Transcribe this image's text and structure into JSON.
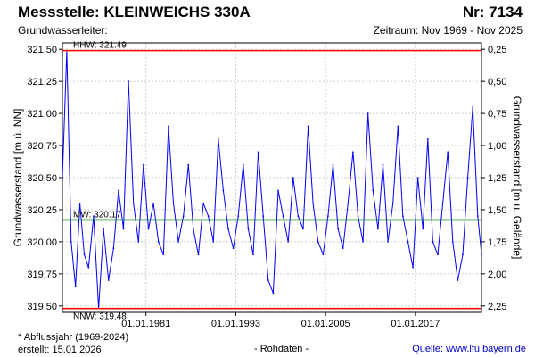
{
  "header": {
    "title": "Messstelle: KLEINWEICHS 330A",
    "number": "Nr: 7134",
    "aquifer_label": "Grundwasserleiter:",
    "period": "Zeitraum: Nov 1969 - Nov 2025"
  },
  "footer": {
    "footnote": "* Abflussjahr (1969-2024)",
    "created": "erstellt:  15.01.2026",
    "raw_data": "- Rohdaten -",
    "source": "Quelle: www.lfu.bayern.de"
  },
  "colors": {
    "series": "#0000ff",
    "extremes": "#ff0000",
    "mean": "#008000",
    "grid": "#cccccc"
  },
  "chart_data": {
    "type": "line",
    "ylabel": "Grundwasserstand [m ü. NN]",
    "ylabel_right": "Grundwasserstand [m u. Gelände]",
    "xlim": [
      "1969-11-01",
      "2025-11-01"
    ],
    "ylim": [
      319.45,
      321.55
    ],
    "ylim_right": [
      0.2,
      2.3
    ],
    "right_axis_offset": 321.75,
    "grid": true,
    "x_ticks": [
      {
        "date": "1981-01-01",
        "label": "01.01.1981"
      },
      {
        "date": "1993-01-01",
        "label": "01.01.1993"
      },
      {
        "date": "2005-01-01",
        "label": "01.01.2005"
      },
      {
        "date": "2017-01-01",
        "label": "01.01.2017"
      }
    ],
    "y_ticks": [
      {
        "value": 319.5,
        "label": "319,50"
      },
      {
        "value": 319.75,
        "label": "319,75"
      },
      {
        "value": 320.0,
        "label": "320,00"
      },
      {
        "value": 320.25,
        "label": "320,25"
      },
      {
        "value": 320.5,
        "label": "320,50"
      },
      {
        "value": 320.75,
        "label": "320,75"
      },
      {
        "value": 321.0,
        "label": "321,00"
      },
      {
        "value": 321.25,
        "label": "321,25"
      },
      {
        "value": 321.5,
        "label": "321,50"
      }
    ],
    "y_ticks_right": [
      {
        "value": 0.25,
        "label": "0,25"
      },
      {
        "value": 0.5,
        "label": "0,50"
      },
      {
        "value": 0.75,
        "label": "0,75"
      },
      {
        "value": 1.0,
        "label": "1,00"
      },
      {
        "value": 1.25,
        "label": "1,25"
      },
      {
        "value": 1.5,
        "label": "1,50"
      },
      {
        "value": 1.75,
        "label": "1,75"
      },
      {
        "value": 2.0,
        "label": "2,00"
      },
      {
        "value": 2.25,
        "label": "2,25"
      }
    ],
    "reference_lines": [
      {
        "label": "HHW: 321.49",
        "value": 321.49,
        "role": "extremes"
      },
      {
        "label": "MW: 320.17",
        "value": 320.17,
        "role": "mean"
      },
      {
        "label": "NNW: 319.48",
        "value": 319.48,
        "role": "extremes"
      }
    ],
    "series": [
      {
        "x": [
          "1969-11-01",
          "1970-06-01",
          "1971-01-01",
          "1971-08-01",
          "1972-03-01",
          "1972-10-01",
          "1973-05-01",
          "1974-01-01",
          "1974-09-01",
          "1975-05-01",
          "1976-01-01",
          "1976-09-01",
          "1977-05-01",
          "1978-01-01",
          "1978-09-01",
          "1979-05-01",
          "1980-01-01",
          "1980-09-01",
          "1981-05-01",
          "1982-01-01",
          "1982-09-01",
          "1983-05-01",
          "1984-01-01",
          "1984-09-01",
          "1985-05-01",
          "1986-01-01",
          "1986-09-01",
          "1987-05-01",
          "1988-01-01",
          "1988-09-01",
          "1989-05-01",
          "1990-01-01",
          "1990-09-01",
          "1991-05-01",
          "1992-01-01",
          "1992-09-01",
          "1993-05-01",
          "1994-01-01",
          "1994-09-01",
          "1995-05-01",
          "1996-01-01",
          "1996-09-01",
          "1997-05-01",
          "1998-01-01",
          "1998-09-01",
          "1999-05-01",
          "2000-01-01",
          "2000-09-01",
          "2001-05-01",
          "2002-01-01",
          "2002-09-01",
          "2003-05-01",
          "2004-01-01",
          "2004-09-01",
          "2005-05-01",
          "2006-01-01",
          "2006-09-01",
          "2007-05-01",
          "2008-01-01",
          "2008-09-01",
          "2009-05-01",
          "2010-01-01",
          "2010-09-01",
          "2011-05-01",
          "2012-01-01",
          "2012-09-01",
          "2013-05-01",
          "2014-01-01",
          "2014-09-01",
          "2015-05-01",
          "2016-01-01",
          "2016-09-01",
          "2017-05-01",
          "2018-01-01",
          "2018-09-01",
          "2019-05-01",
          "2020-01-01",
          "2020-09-01",
          "2021-05-01",
          "2022-01-01",
          "2022-09-01",
          "2023-05-01",
          "2024-01-01",
          "2024-09-01",
          "2025-05-01",
          "2025-11-01"
        ],
        "y": [
          320.5,
          321.49,
          320.0,
          319.65,
          320.3,
          319.9,
          319.8,
          320.2,
          319.48,
          320.1,
          319.7,
          319.95,
          320.4,
          320.1,
          321.25,
          320.3,
          320.0,
          320.6,
          320.1,
          320.3,
          320.0,
          319.9,
          320.9,
          320.3,
          320.0,
          320.2,
          320.6,
          320.1,
          319.9,
          320.3,
          320.2,
          320.0,
          320.8,
          320.4,
          320.1,
          319.95,
          320.2,
          320.6,
          320.1,
          319.9,
          320.7,
          320.2,
          319.7,
          319.6,
          320.4,
          320.2,
          320.0,
          320.5,
          320.2,
          320.1,
          320.9,
          320.3,
          320.0,
          319.9,
          320.2,
          320.6,
          320.1,
          319.95,
          320.3,
          320.7,
          320.2,
          320.0,
          321.0,
          320.4,
          320.1,
          320.6,
          320.0,
          320.3,
          320.9,
          320.2,
          320.0,
          319.8,
          320.5,
          320.1,
          320.8,
          320.0,
          319.9,
          320.3,
          320.7,
          320.0,
          319.7,
          319.9,
          320.5,
          321.05,
          320.2,
          319.9
        ]
      }
    ]
  }
}
